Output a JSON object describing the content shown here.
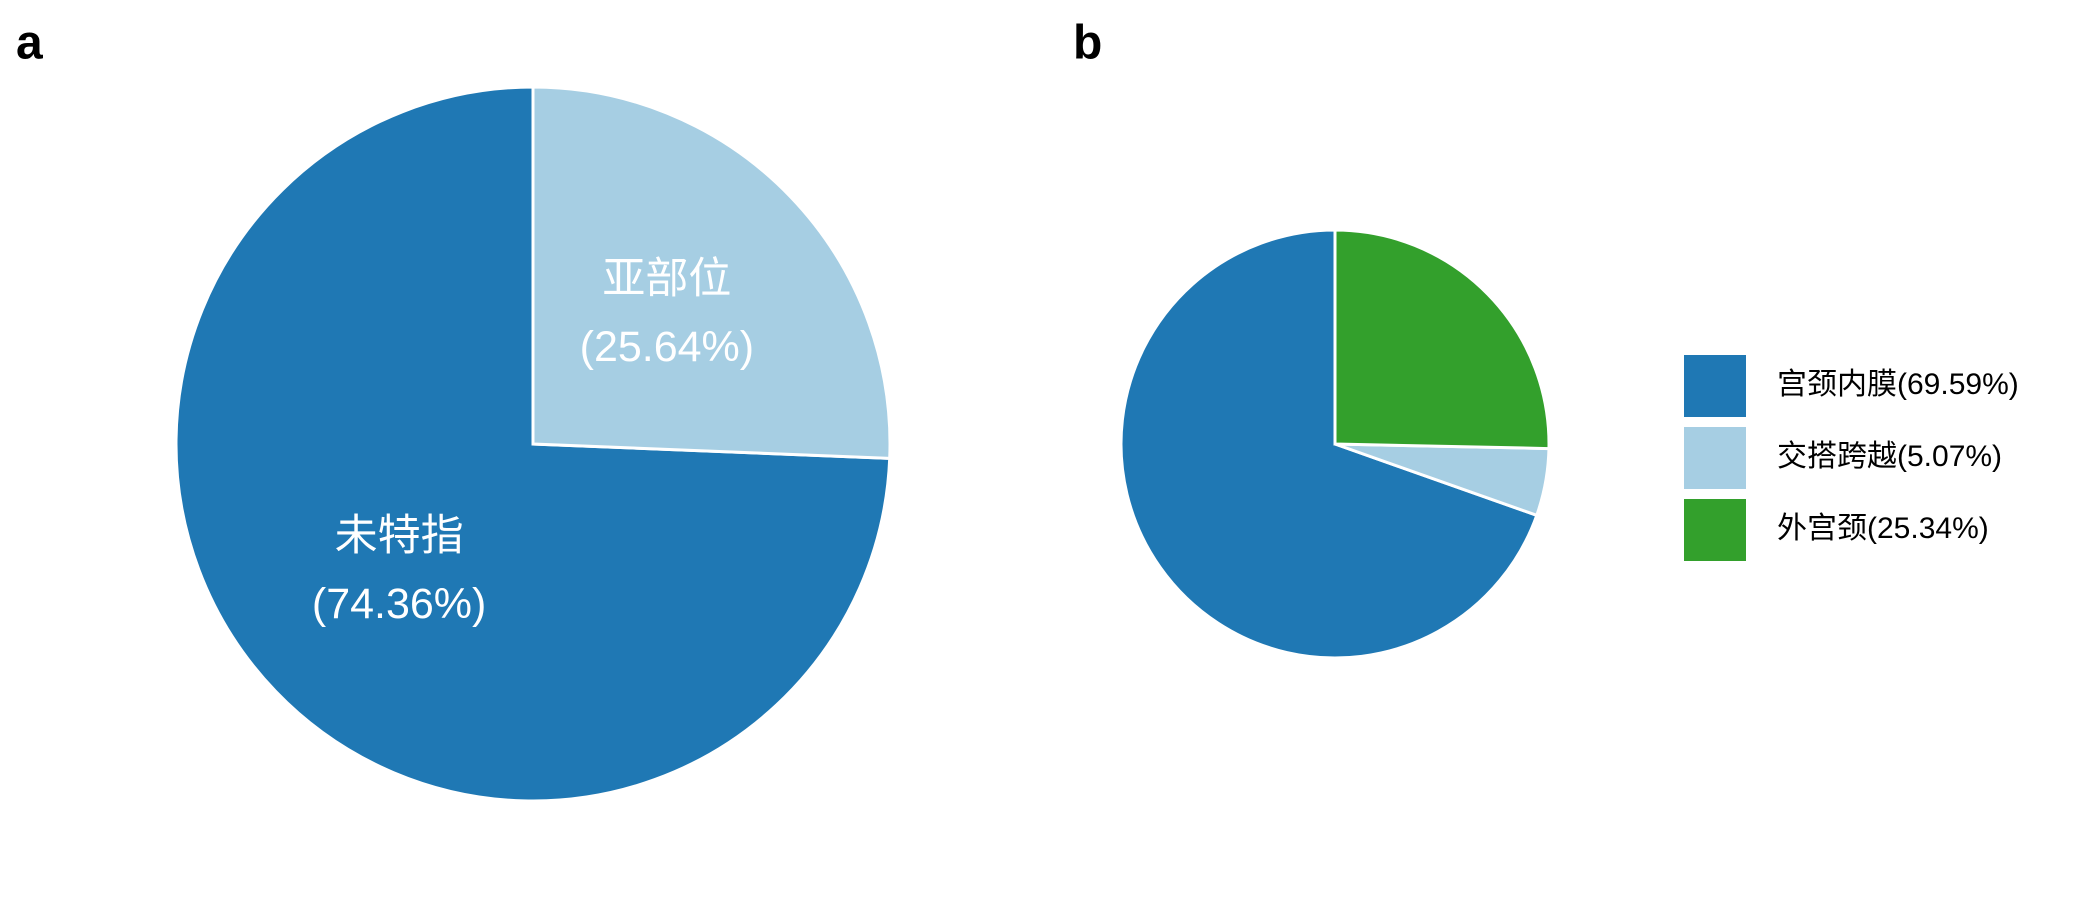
{
  "chart_data": [
    {
      "type": "pie",
      "title": "a",
      "label_position": "inside",
      "categories": [
        "未特指",
        "亚部位"
      ],
      "values": [
        74.36,
        25.64
      ],
      "value_labels": [
        "(74.36%)",
        "(25.64%)"
      ],
      "colors": [
        "#1f78b4",
        "#a6cee3"
      ]
    },
    {
      "type": "pie",
      "title": "b",
      "label_position": "legend",
      "categories": [
        "宫颈内膜",
        "交搭跨越",
        "外宫颈"
      ],
      "values": [
        69.59,
        5.07,
        25.34
      ],
      "value_labels": [
        "(69.59%)",
        "(5.07%)",
        "(25.34%)"
      ],
      "colors": [
        "#1f78b4",
        "#a6cee3",
        "#33a02c"
      ]
    }
  ]
}
